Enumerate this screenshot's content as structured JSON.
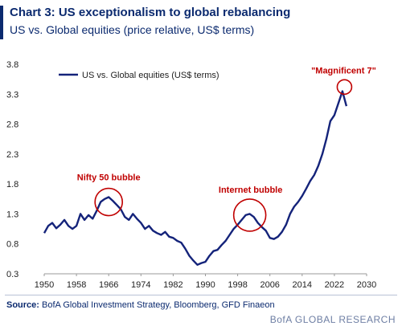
{
  "header": {
    "title": "Chart 3: US exceptionalism to global rebalancing",
    "subtitle": "US vs. Global equities (price relative, US$ terms)"
  },
  "footer": {
    "source_label": "Source:",
    "source_text": "BofA Global Investment Strategy, Bloomberg, GFD Finaeon",
    "brand": "BofA GLOBAL RESEARCH"
  },
  "colors": {
    "line": "#14237a",
    "annotation": "#c00000",
    "title": "#0b2a6f"
  },
  "chart_data": {
    "type": "line",
    "title": "",
    "xlabel": "",
    "ylabel": "",
    "xlim": [
      1950,
      2030
    ],
    "ylim": [
      0.3,
      3.8
    ],
    "x_ticks": [
      1950,
      1958,
      1966,
      1974,
      1982,
      1990,
      1998,
      2006,
      2014,
      2022,
      2030
    ],
    "y_ticks": [
      0.3,
      0.8,
      1.3,
      1.8,
      2.3,
      2.8,
      3.3,
      3.8
    ],
    "y_tick_labels": [
      "0.3",
      "0.8",
      "1.3",
      "1.8",
      "2.3",
      "2.8",
      "3.3",
      "3.8"
    ],
    "grid": false,
    "legend_position": "top-left",
    "series": [
      {
        "name": "US vs. Global equities (US$ terms)",
        "x": [
          1950,
          1951,
          1952,
          1953,
          1954,
          1955,
          1956,
          1957,
          1958,
          1959,
          1960,
          1961,
          1962,
          1963,
          1964,
          1965,
          1966,
          1967,
          1968,
          1969,
          1970,
          1971,
          1972,
          1973,
          1974,
          1975,
          1976,
          1977,
          1978,
          1979,
          1980,
          1981,
          1982,
          1983,
          1984,
          1985,
          1986,
          1987,
          1988,
          1989,
          1990,
          1991,
          1992,
          1993,
          1994,
          1995,
          1996,
          1997,
          1998,
          1999,
          2000,
          2001,
          2002,
          2003,
          2004,
          2005,
          2006,
          2007,
          2008,
          2009,
          2010,
          2011,
          2012,
          2013,
          2014,
          2015,
          2016,
          2017,
          2018,
          2019,
          2020,
          2021,
          2022,
          2023,
          2024,
          2025
        ],
        "values": [
          0.98,
          1.1,
          1.15,
          1.06,
          1.12,
          1.2,
          1.1,
          1.05,
          1.1,
          1.3,
          1.2,
          1.28,
          1.22,
          1.35,
          1.5,
          1.55,
          1.58,
          1.52,
          1.45,
          1.38,
          1.25,
          1.2,
          1.3,
          1.22,
          1.15,
          1.05,
          1.1,
          1.02,
          0.98,
          0.95,
          1.0,
          0.92,
          0.9,
          0.85,
          0.82,
          0.72,
          0.6,
          0.52,
          0.45,
          0.48,
          0.5,
          0.6,
          0.68,
          0.7,
          0.78,
          0.85,
          0.95,
          1.05,
          1.12,
          1.2,
          1.28,
          1.3,
          1.25,
          1.15,
          1.08,
          1.02,
          0.9,
          0.88,
          0.92,
          1.0,
          1.12,
          1.3,
          1.42,
          1.5,
          1.6,
          1.72,
          1.85,
          1.95,
          2.1,
          2.3,
          2.55,
          2.85,
          2.95,
          3.15,
          3.35,
          3.1
        ]
      }
    ],
    "annotations": [
      {
        "label": "Nifty 50 bubble",
        "x": 1966,
        "y": 1.5
      },
      {
        "label": "Internet bubble",
        "x": 2001,
        "y": 1.28
      },
      {
        "label": "\"Magnificent 7\"",
        "x": 2024.5,
        "y": 3.42
      }
    ]
  }
}
